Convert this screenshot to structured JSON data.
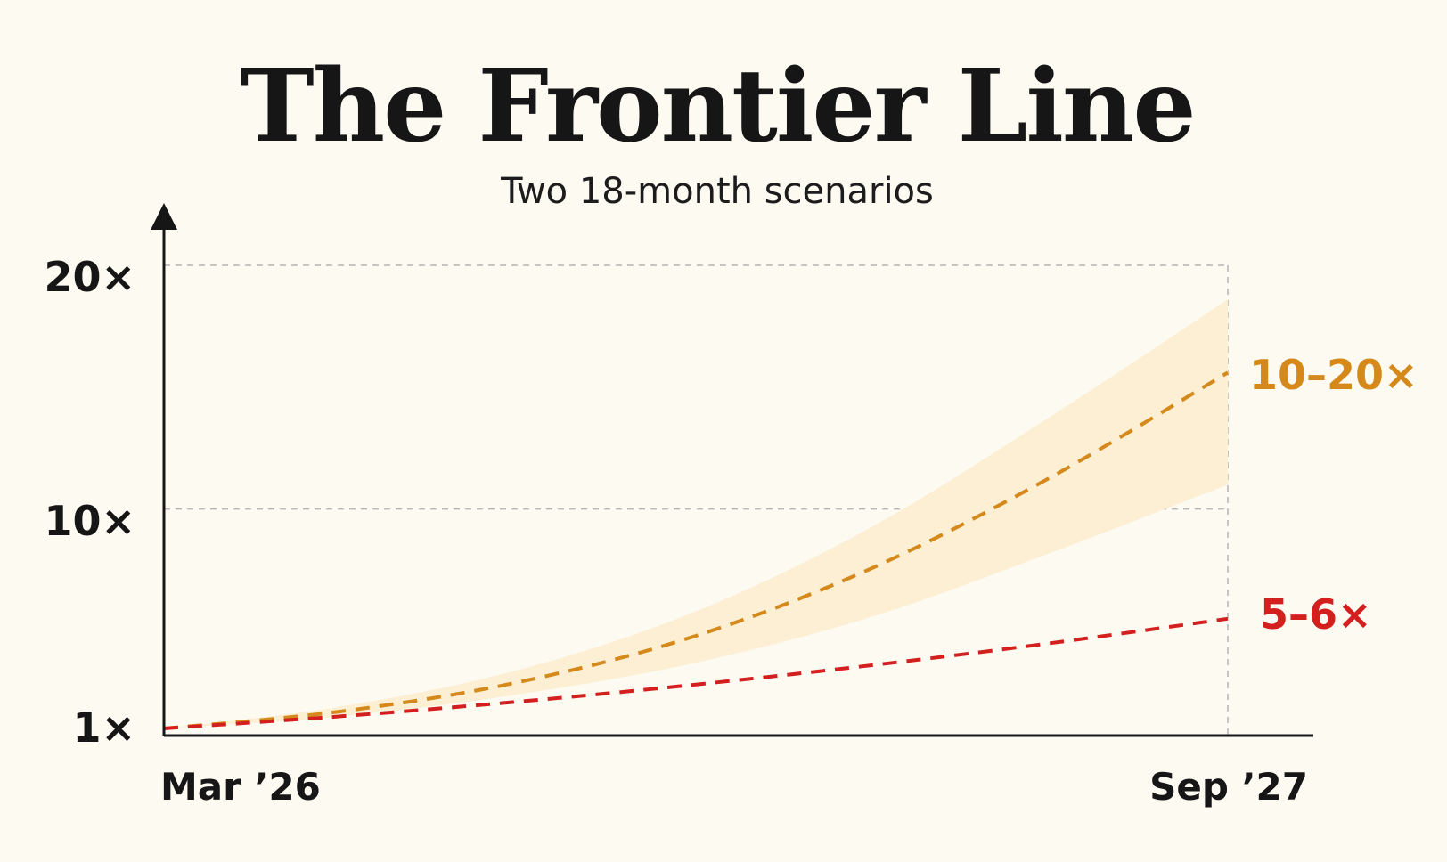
{
  "chart_data": {
    "type": "line",
    "title": "The Frontier Line",
    "subtitle": "Two 18-month scenarios",
    "x_ticks": [
      "Mar ’26",
      "Sep ’27"
    ],
    "y_ticks": [
      "1×",
      "10×",
      "20×"
    ],
    "y_tick_values": [
      1,
      10,
      20
    ],
    "ylim": [
      1,
      20
    ],
    "x_months": [
      0,
      3,
      6,
      9,
      12,
      15,
      18
    ],
    "grid": "dashed at 10× and 20×, dashed vertical at Sep ’27",
    "series": [
      {
        "name": "",
        "end_label": "10–20×",
        "style": "dashed",
        "color": "#d4891a",
        "values": [
          1.0,
          1.7,
          2.9,
          4.8,
          7.6,
          11.3,
          15.6
        ],
        "band_low": [
          1.0,
          1.5,
          2.4,
          3.7,
          5.6,
          8.2,
          11.0
        ],
        "band_high": [
          1.0,
          1.9,
          3.4,
          5.8,
          9.3,
          13.8,
          18.6
        ],
        "band_color": "#fcefd3"
      },
      {
        "name": "",
        "end_label": "5–6×",
        "style": "dashed",
        "color": "#d41f1f",
        "values": [
          1.0,
          1.5,
          2.1,
          2.8,
          3.6,
          4.5,
          5.5
        ]
      }
    ]
  },
  "colors": {
    "background": "#fdfaf2",
    "axis": "#161616",
    "grid": "#b5b5b5"
  }
}
